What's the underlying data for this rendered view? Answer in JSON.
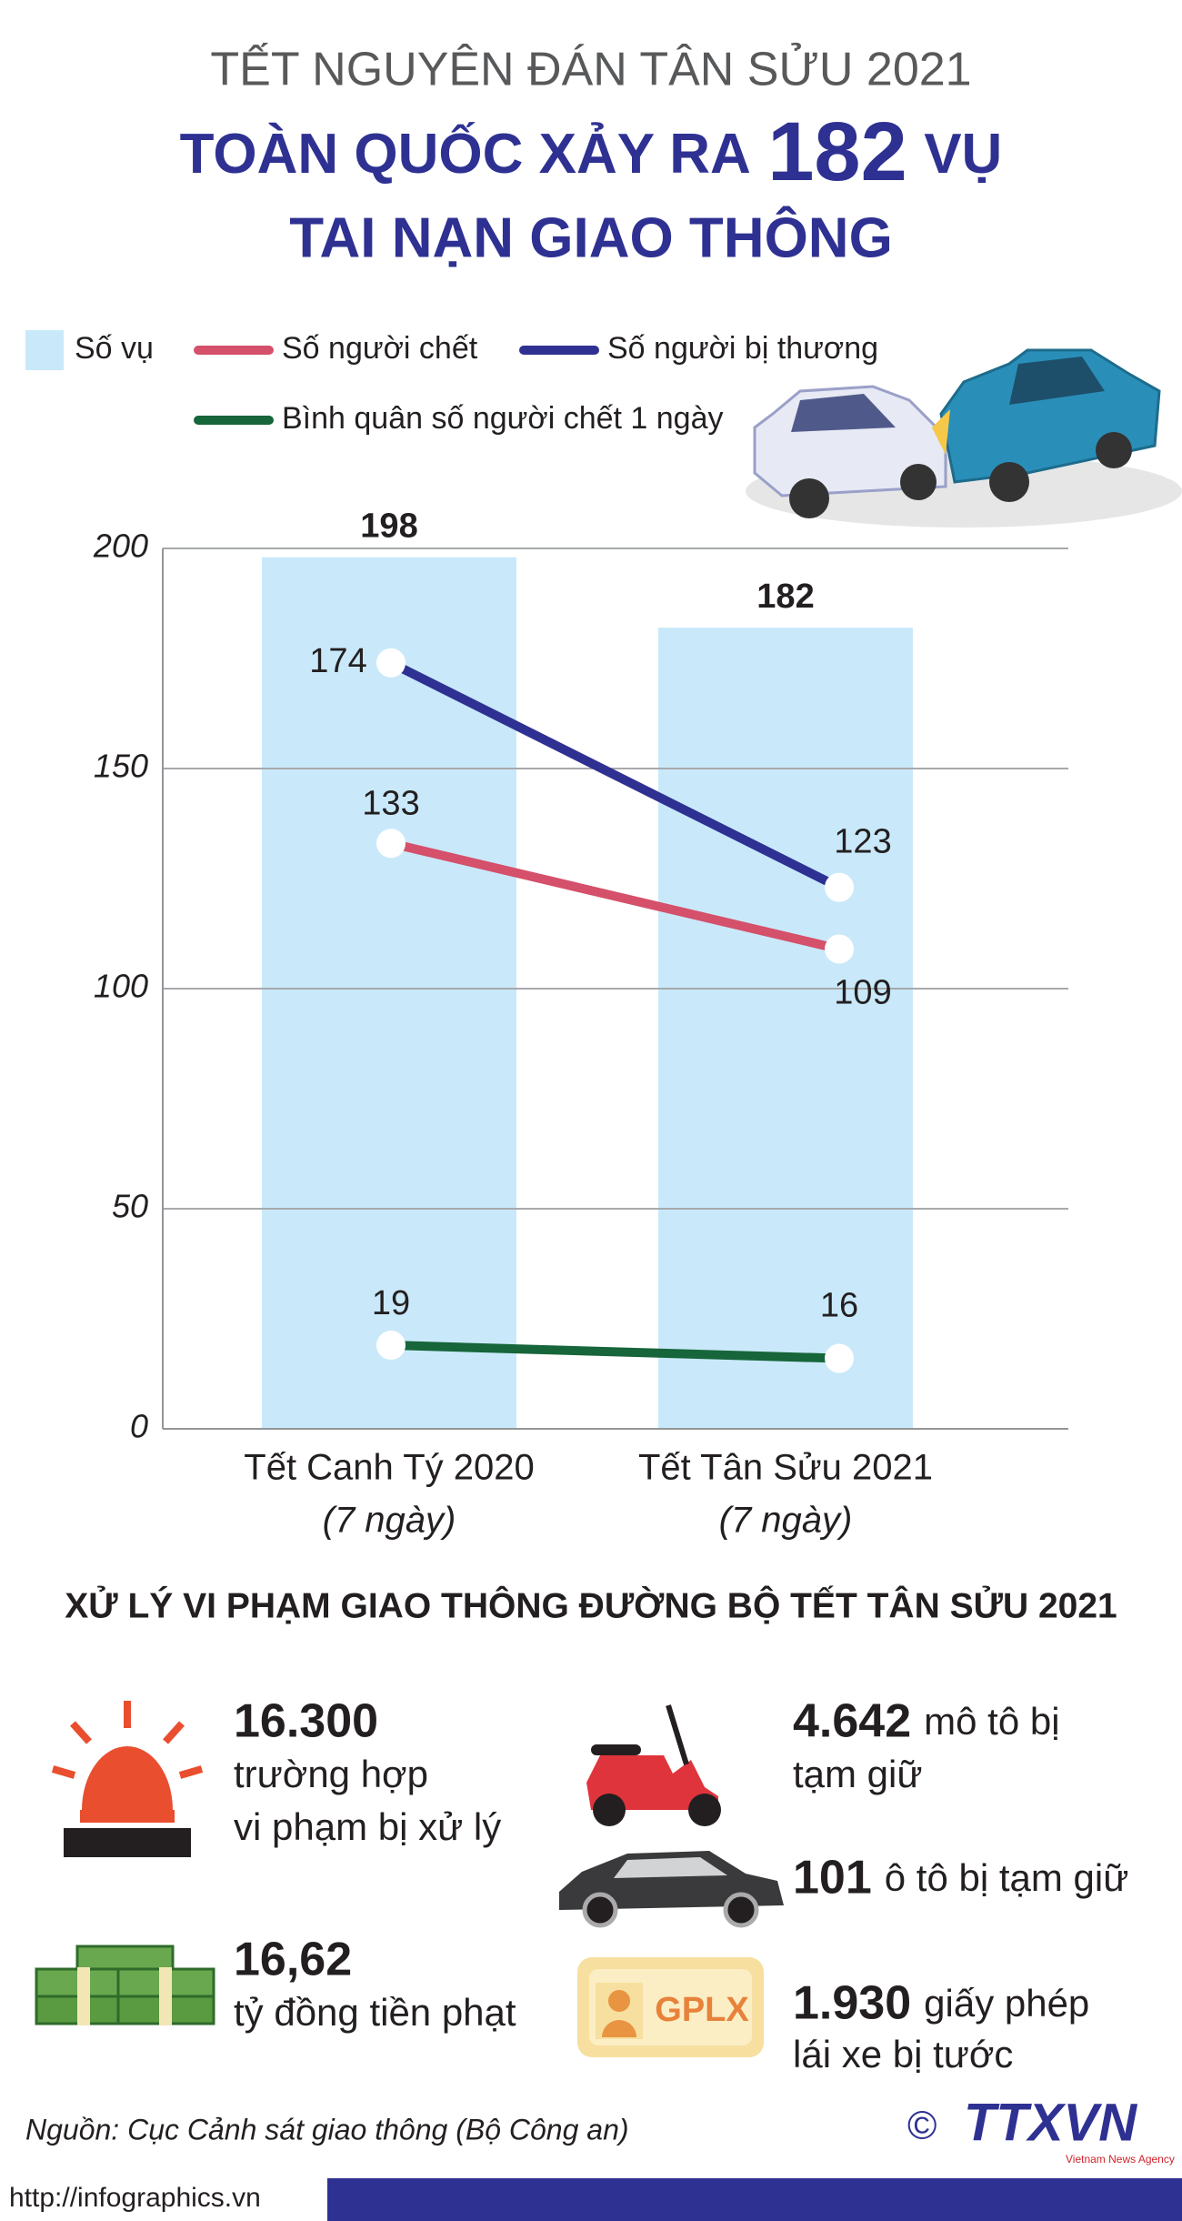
{
  "header": {
    "supertitle": "TẾT NGUYÊN ĐÁN TÂN SỬU 2021",
    "title_pre": "TOÀN QUỐC XẢY RA",
    "title_number": "182",
    "title_post": "VỤ",
    "title_line2": "TAI NẠN GIAO THÔNG"
  },
  "chart_data": {
    "type": "combo",
    "categories": [
      "Tết Canh Tý 2020",
      "Tết Tân Sửu 2021"
    ],
    "category_notes": [
      "(7 ngày)",
      "(7 ngày)"
    ],
    "series": [
      {
        "name": "Số vụ",
        "type": "bar",
        "color": "#c9e9fa",
        "values": [
          198,
          182
        ]
      },
      {
        "name": "Số người chết",
        "type": "line",
        "color": "#d5506a",
        "values": [
          133,
          109
        ]
      },
      {
        "name": "Số người bị thương",
        "type": "line",
        "color": "#2e3192",
        "values": [
          174,
          123
        ]
      },
      {
        "name": "Bình quân số người chết 1 ngày",
        "type": "line",
        "color": "#17653a",
        "values": [
          19,
          16
        ]
      }
    ],
    "ylim": [
      0,
      200
    ],
    "yticks": [
      0,
      50,
      100,
      150,
      200
    ],
    "grid": true
  },
  "violations": {
    "title": "XỬ LÝ VI PHẠM GIAO THÔNG ĐƯỜNG BỘ TẾT TÂN SỬU 2021",
    "items": [
      {
        "number": "16.300",
        "lines": [
          "trường hợp",
          "vi phạm bị xử lý"
        ]
      },
      {
        "number": "4.642",
        "lines": [
          "mô tô bị",
          "tạm giữ"
        ]
      },
      {
        "number": "101",
        "lines": [
          "ô tô bị tạm giữ"
        ]
      },
      {
        "number": "16,62",
        "lines": [
          "tỷ đồng tiền phạt"
        ]
      },
      {
        "number": "1.930",
        "lines": [
          "giấy phép",
          "lái xe bị tước"
        ]
      }
    ],
    "license_icon_label": "GPLX"
  },
  "footer": {
    "source": "Nguồn: Cục Cảnh sát giao thông (Bộ Công an)",
    "url": "http://infographics.vn",
    "copyright": "©",
    "logo": "TTXVN",
    "logo_sub": "Vietnam News Agency"
  }
}
